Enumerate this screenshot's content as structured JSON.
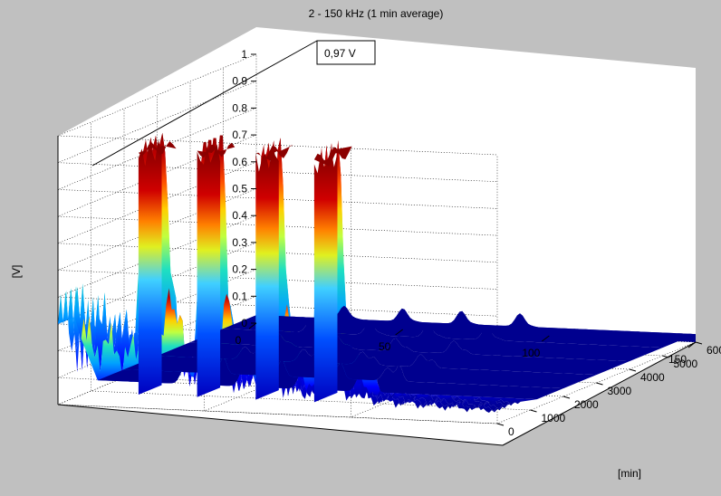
{
  "chart_data": {
    "type": "surface",
    "title": "2 - 150 kHz (1 min average)",
    "zlabel": "[V]",
    "ylabel": "[min]",
    "xlabel": "",
    "x_ticks": [
      "0",
      "50",
      "100",
      "150"
    ],
    "y_ticks": [
      "0",
      "1000",
      "2000",
      "3000",
      "4000",
      "5000",
      "6000"
    ],
    "z_ticks": [
      "0",
      "0.1",
      "0.2",
      "0.3",
      "0.4",
      "0.5",
      "0.6",
      "0.7",
      "0.8",
      "0.9",
      "1"
    ],
    "xlim": [
      0,
      150
    ],
    "ylim": [
      0,
      6000
    ],
    "zlim": [
      0,
      1
    ],
    "grid": true,
    "colormap": "jet",
    "annotation": "0,97 V",
    "peak_value": 0.97,
    "background": "#c0c0c0",
    "axes_face": "#ffffff",
    "surface_floor_color": "#00008f",
    "peak_color": "#8b0000",
    "peaks_x": [
      30,
      50,
      70,
      90
    ]
  }
}
